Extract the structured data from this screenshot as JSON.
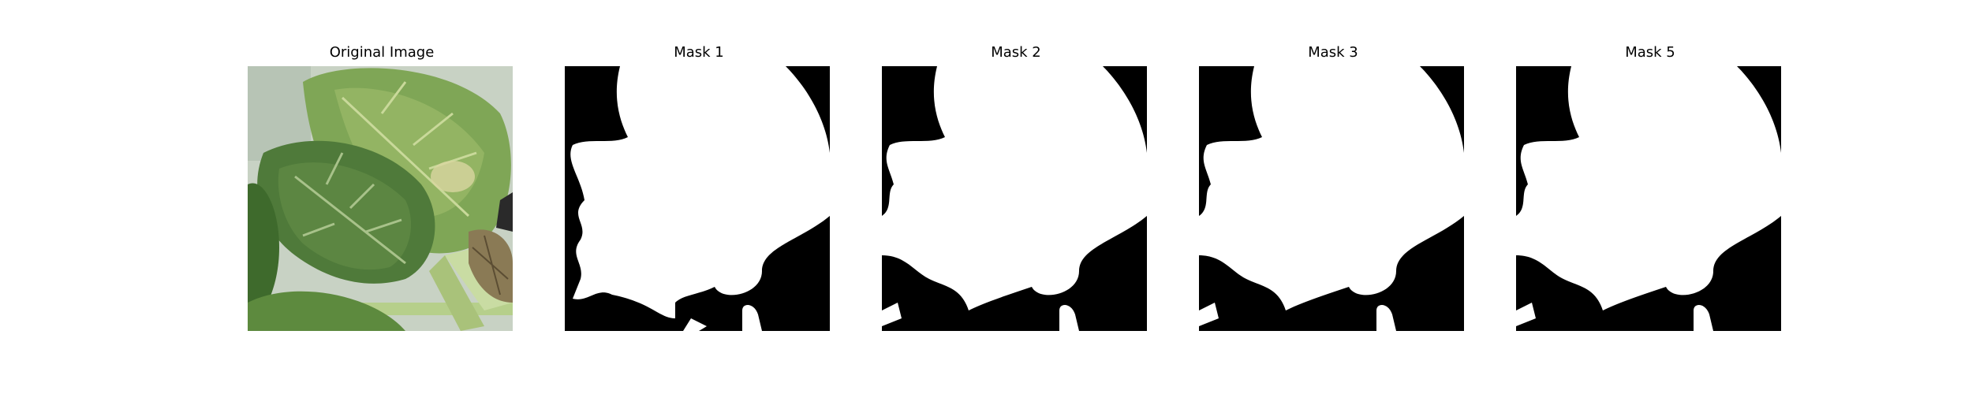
{
  "panels": [
    {
      "title": "Original Image",
      "kind": "photo"
    },
    {
      "title": "Mask 1",
      "kind": "mask"
    },
    {
      "title": "Mask 2",
      "kind": "mask"
    },
    {
      "title": "Mask 3",
      "kind": "mask"
    },
    {
      "title": "Mask 5",
      "kind": "mask"
    }
  ],
  "colors": {
    "mask_foreground": "#ffffff",
    "mask_background": "#000000",
    "leaf_dark": "#3d6a2e",
    "leaf_mid": "#6f9a4a",
    "leaf_light": "#a9c27a",
    "stem": "#c9dca3",
    "backdrop": "#c8d2c4"
  }
}
